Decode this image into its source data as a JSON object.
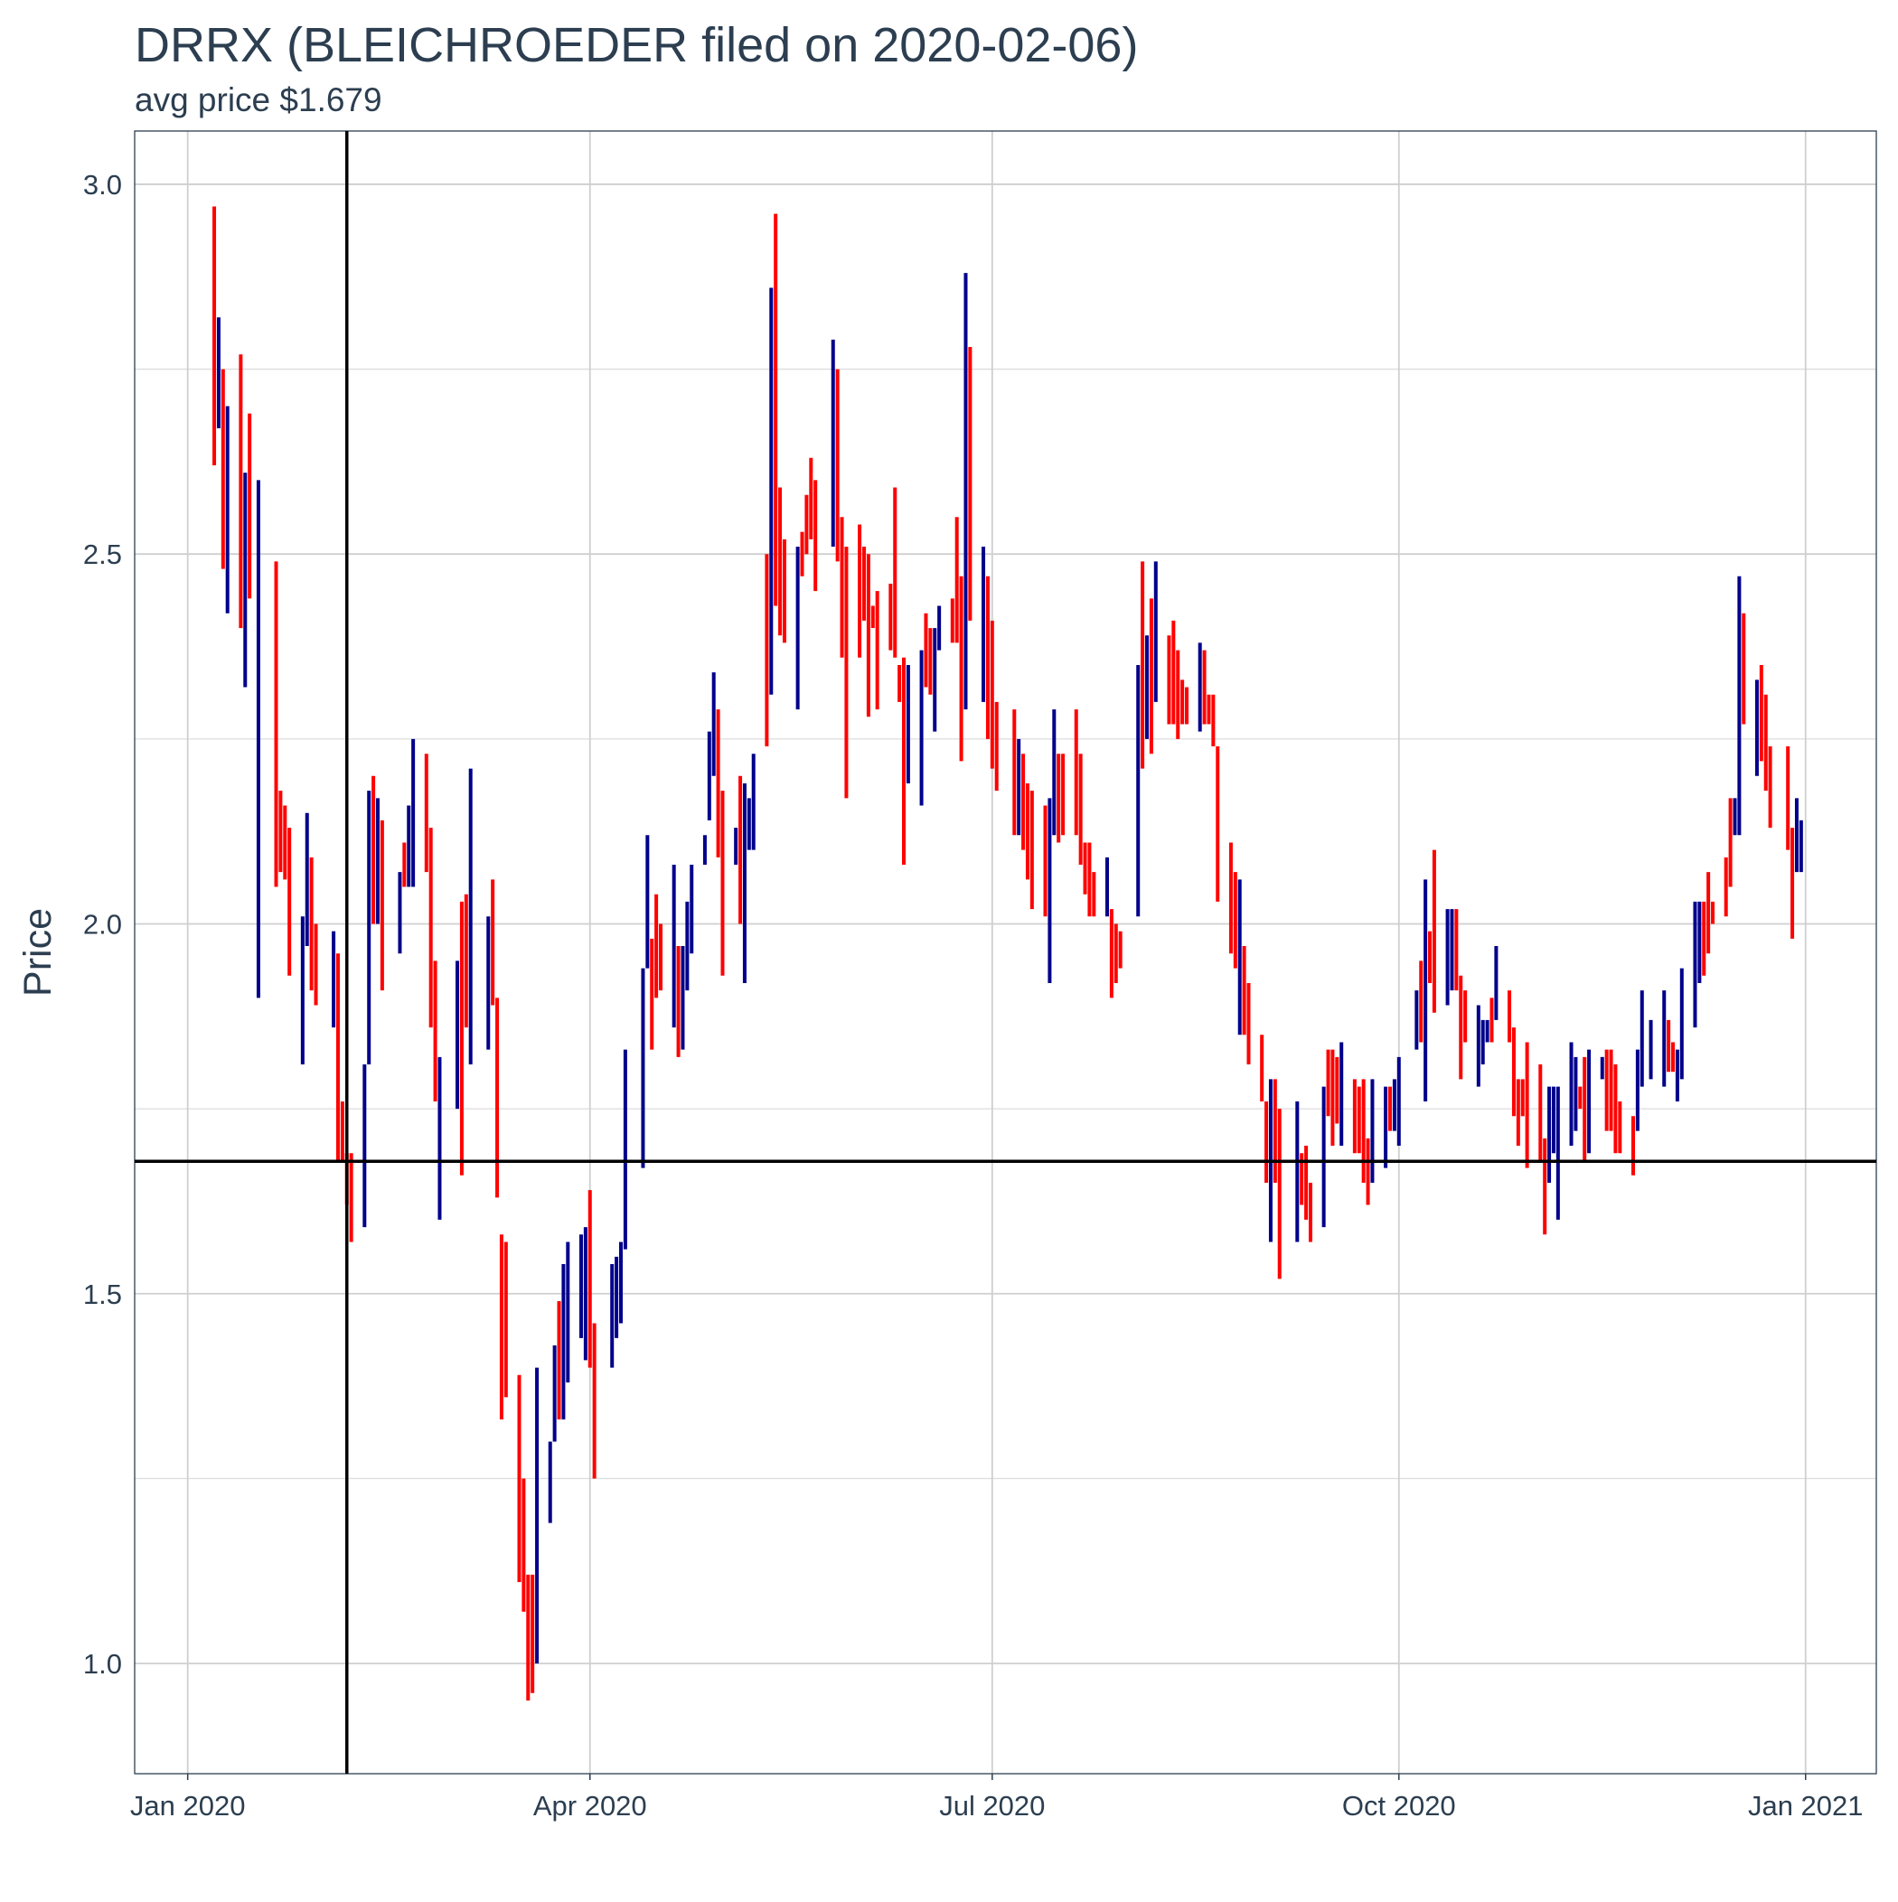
{
  "chart_data": {
    "type": "candlestick",
    "title": "DRRX (BLEICHROEDER filed on 2020-02-06)",
    "subtitle": "avg price $1.679",
    "y_label": "Price",
    "xlim": [
      "2019-12-20",
      "2021-01-17"
    ],
    "xticks": [
      {
        "value": "2020-01-01",
        "label": "Jan 2020"
      },
      {
        "value": "2020-04-01",
        "label": "Apr 2020"
      },
      {
        "value": "2020-07-01",
        "label": "Jul 2020"
      },
      {
        "value": "2020-10-01",
        "label": "Oct 2020"
      },
      {
        "value": "2021-01-01",
        "label": "Jan 2021"
      }
    ],
    "ylim": [
      0.851,
      3.072
    ],
    "yticks": [
      {
        "value": 1,
        "label": "1.0"
      },
      1.5,
      {
        "value": 2,
        "label": "2.0"
      },
      2.5,
      {
        "value": 3,
        "label": "3.0"
      }
    ],
    "yminor": [
      1.25,
      1.75,
      2.25,
      2.75
    ],
    "grid": true,
    "vline": "2020-02-06",
    "hline": 1.679,
    "series": [
      {
        "color": "#ff0000",
        "x": [
          "2020-01-07",
          "2020-01-09",
          "2020-01-13",
          "2020-01-15",
          "2020-01-21",
          "2020-01-22",
          "2020-01-23",
          "2020-01-24",
          "2020-01-29",
          "2020-01-30",
          "2020-02-04",
          "2020-02-05",
          "2020-02-06",
          "2020-02-07",
          "2020-02-12",
          "2020-02-14",
          "2020-02-19",
          "2020-02-24",
          "2020-02-25",
          "2020-02-26",
          "2020-03-03",
          "2020-03-04",
          "2020-03-10",
          "2020-03-11",
          "2020-03-12",
          "2020-03-13",
          "2020-03-16",
          "2020-03-17",
          "2020-03-18",
          "2020-03-19",
          "2020-03-25",
          "2020-04-01",
          "2020-04-02",
          "2020-04-15",
          "2020-04-16",
          "2020-04-17",
          "2020-04-21",
          "2020-04-30",
          "2020-05-01",
          "2020-05-05",
          "2020-05-11",
          "2020-05-13",
          "2020-05-14",
          "2020-05-15",
          "2020-05-19",
          "2020-05-20",
          "2020-05-21",
          "2020-05-22",
          "2020-05-27",
          "2020-05-28",
          "2020-05-29",
          "2020-06-01",
          "2020-06-02",
          "2020-06-03",
          "2020-06-04",
          "2020-06-05",
          "2020-06-08",
          "2020-06-09",
          "2020-06-10",
          "2020-06-11",
          "2020-06-16",
          "2020-06-17",
          "2020-06-22",
          "2020-06-23",
          "2020-06-24",
          "2020-06-26",
          "2020-06-30",
          "2020-07-01",
          "2020-07-02",
          "2020-07-06",
          "2020-07-08",
          "2020-07-09",
          "2020-07-10",
          "2020-07-13",
          "2020-07-16",
          "2020-07-17",
          "2020-07-20",
          "2020-07-21",
          "2020-07-22",
          "2020-07-23",
          "2020-07-24",
          "2020-07-28",
          "2020-07-29",
          "2020-07-30",
          "2020-08-04",
          "2020-08-06",
          "2020-08-10",
          "2020-08-11",
          "2020-08-12",
          "2020-08-13",
          "2020-08-14",
          "2020-08-18",
          "2020-08-19",
          "2020-08-20",
          "2020-08-21",
          "2020-08-24",
          "2020-08-25",
          "2020-08-27",
          "2020-08-28",
          "2020-08-31",
          "2020-09-01",
          "2020-09-03",
          "2020-09-04",
          "2020-09-09",
          "2020-09-10",
          "2020-09-11",
          "2020-09-15",
          "2020-09-16",
          "2020-09-17",
          "2020-09-21",
          "2020-09-22",
          "2020-09-23",
          "2020-09-24",
          "2020-09-29",
          "2020-10-06",
          "2020-10-08",
          "2020-10-09",
          "2020-10-14",
          "2020-10-15",
          "2020-10-16",
          "2020-10-22",
          "2020-10-26",
          "2020-10-27",
          "2020-10-28",
          "2020-10-29",
          "2020-10-30",
          "2020-11-02",
          "2020-11-03",
          "2020-11-11",
          "2020-11-12",
          "2020-11-17",
          "2020-11-18",
          "2020-11-19",
          "2020-11-20",
          "2020-11-23",
          "2020-12-01",
          "2020-12-02",
          "2020-12-09",
          "2020-12-10",
          "2020-12-11",
          "2020-12-14",
          "2020-12-15",
          "2020-12-18",
          "2020-12-22",
          "2020-12-23",
          "2020-12-24",
          "2020-12-28",
          "2020-12-29"
        ],
        "high": [
          2.97,
          2.75,
          2.77,
          2.69,
          2.49,
          2.18,
          2.16,
          2.13,
          2.09,
          2.0,
          1.96,
          1.76,
          1.69,
          1.69,
          2.2,
          2.14,
          2.11,
          2.23,
          2.13,
          1.95,
          2.03,
          2.04,
          2.06,
          1.9,
          1.58,
          1.57,
          1.39,
          1.25,
          1.12,
          1.12,
          1.49,
          1.64,
          1.46,
          1.98,
          2.04,
          2.0,
          1.97,
          2.29,
          2.18,
          2.2,
          2.5,
          2.96,
          2.59,
          2.52,
          2.53,
          2.58,
          2.63,
          2.6,
          2.75,
          2.55,
          2.51,
          2.54,
          2.51,
          2.5,
          2.43,
          2.45,
          2.46,
          2.59,
          2.35,
          2.36,
          2.42,
          2.4,
          2.44,
          2.55,
          2.47,
          2.78,
          2.47,
          2.41,
          2.3,
          2.29,
          2.23,
          2.19,
          2.18,
          2.16,
          2.23,
          2.23,
          2.29,
          2.23,
          2.11,
          2.11,
          2.07,
          2.02,
          2.0,
          1.99,
          2.49,
          2.44,
          2.39,
          2.41,
          2.37,
          2.33,
          2.32,
          2.37,
          2.31,
          2.31,
          2.24,
          2.11,
          2.07,
          1.97,
          1.92,
          1.85,
          1.76,
          1.79,
          1.75,
          1.69,
          1.7,
          1.65,
          1.83,
          1.83,
          1.82,
          1.79,
          1.78,
          1.79,
          1.71,
          1.78,
          1.95,
          1.99,
          2.1,
          2.02,
          1.93,
          1.91,
          1.9,
          1.91,
          1.86,
          1.79,
          1.79,
          1.84,
          1.81,
          1.71,
          1.78,
          1.82,
          1.83,
          1.83,
          1.81,
          1.76,
          1.74,
          1.87,
          1.84,
          2.03,
          2.07,
          2.03,
          2.09,
          2.17,
          2.42,
          2.35,
          2.31,
          2.24,
          2.24,
          2.13
        ],
        "low": [
          2.62,
          2.48,
          2.4,
          2.44,
          2.05,
          2.07,
          2.06,
          1.93,
          1.91,
          1.89,
          1.68,
          1.68,
          1.62,
          1.57,
          2.0,
          1.91,
          2.05,
          2.07,
          1.86,
          1.76,
          1.66,
          1.86,
          1.89,
          1.63,
          1.33,
          1.36,
          1.11,
          1.07,
          0.95,
          0.96,
          1.33,
          1.4,
          1.25,
          1.83,
          1.9,
          1.91,
          1.82,
          2.09,
          1.93,
          2.0,
          2.24,
          2.43,
          2.39,
          2.38,
          2.47,
          2.5,
          2.52,
          2.45,
          2.49,
          2.36,
          2.17,
          2.36,
          2.41,
          2.28,
          2.4,
          2.29,
          2.37,
          2.36,
          2.3,
          2.08,
          2.32,
          2.31,
          2.38,
          2.38,
          2.22,
          2.41,
          2.25,
          2.21,
          2.18,
          2.12,
          2.1,
          2.06,
          2.02,
          2.01,
          2.11,
          2.12,
          2.12,
          2.08,
          2.04,
          2.01,
          2.01,
          1.9,
          1.92,
          1.94,
          2.21,
          2.23,
          2.27,
          2.27,
          2.25,
          2.27,
          2.27,
          2.27,
          2.27,
          2.24,
          2.03,
          1.96,
          1.94,
          1.85,
          1.81,
          1.76,
          1.65,
          1.65,
          1.52,
          1.62,
          1.6,
          1.57,
          1.74,
          1.7,
          1.73,
          1.69,
          1.69,
          1.65,
          1.62,
          1.72,
          1.84,
          1.92,
          1.88,
          1.91,
          1.79,
          1.84,
          1.84,
          1.84,
          1.74,
          1.7,
          1.74,
          1.67,
          1.68,
          1.58,
          1.75,
          1.68,
          1.72,
          1.72,
          1.69,
          1.69,
          1.66,
          1.8,
          1.8,
          1.93,
          1.96,
          2.0,
          2.01,
          2.05,
          2.27,
          2.22,
          2.18,
          2.13,
          2.1,
          1.98
        ]
      },
      {
        "color": "#00008b",
        "x": [
          "2020-01-08",
          "2020-01-10",
          "2020-01-14",
          "2020-01-17",
          "2020-01-27",
          "2020-01-28",
          "2020-02-03",
          "2020-02-10",
          "2020-02-11",
          "2020-02-13",
          "2020-02-18",
          "2020-02-20",
          "2020-02-21",
          "2020-02-27",
          "2020-03-02",
          "2020-03-05",
          "2020-03-09",
          "2020-03-20",
          "2020-03-23",
          "2020-03-24",
          "2020-03-26",
          "2020-03-27",
          "2020-03-30",
          "2020-03-31",
          "2020-04-06",
          "2020-04-07",
          "2020-04-08",
          "2020-04-09",
          "2020-04-13",
          "2020-04-14",
          "2020-04-20",
          "2020-04-22",
          "2020-04-23",
          "2020-04-24",
          "2020-04-27",
          "2020-04-28",
          "2020-04-29",
          "2020-05-04",
          "2020-05-06",
          "2020-05-07",
          "2020-05-08",
          "2020-05-12",
          "2020-05-18",
          "2020-05-26",
          "2020-06-12",
          "2020-06-15",
          "2020-06-18",
          "2020-06-19",
          "2020-06-25",
          "2020-06-29",
          "2020-07-07",
          "2020-07-14",
          "2020-07-15",
          "2020-07-27",
          "2020-08-03",
          "2020-08-05",
          "2020-08-07",
          "2020-08-17",
          "2020-08-26",
          "2020-09-02",
          "2020-09-08",
          "2020-09-14",
          "2020-09-18",
          "2020-09-25",
          "2020-09-28",
          "2020-09-30",
          "2020-10-01",
          "2020-10-05",
          "2020-10-07",
          "2020-10-12",
          "2020-10-13",
          "2020-10-19",
          "2020-10-20",
          "2020-10-21",
          "2020-10-23",
          "2020-11-04",
          "2020-11-05",
          "2020-11-06",
          "2020-11-09",
          "2020-11-10",
          "2020-11-13",
          "2020-11-16",
          "2020-11-24",
          "2020-11-25",
          "2020-11-27",
          "2020-11-30",
          "2020-12-03",
          "2020-12-04",
          "2020-12-07",
          "2020-12-08",
          "2020-12-16",
          "2020-12-17",
          "2020-12-21",
          "2020-12-30",
          "2020-12-31"
        ],
        "high": [
          2.82,
          2.7,
          2.61,
          2.6,
          2.01,
          2.15,
          1.99,
          1.81,
          2.18,
          2.17,
          2.07,
          2.16,
          2.25,
          1.82,
          1.95,
          2.21,
          2.01,
          1.4,
          1.3,
          1.43,
          1.54,
          1.57,
          1.58,
          1.59,
          1.54,
          1.55,
          1.57,
          1.83,
          1.94,
          2.12,
          2.08,
          1.97,
          2.03,
          2.08,
          2.12,
          2.26,
          2.34,
          2.13,
          2.19,
          2.17,
          2.23,
          2.86,
          2.51,
          2.79,
          2.35,
          2.37,
          2.4,
          2.43,
          2.88,
          2.51,
          2.25,
          2.17,
          2.29,
          2.09,
          2.35,
          2.39,
          2.49,
          2.38,
          2.06,
          1.79,
          1.76,
          1.78,
          1.84,
          1.79,
          1.78,
          1.79,
          1.82,
          1.91,
          2.06,
          2.02,
          2.02,
          1.89,
          1.87,
          1.87,
          1.97,
          1.78,
          1.78,
          1.78,
          1.84,
          1.82,
          1.83,
          1.82,
          1.83,
          1.91,
          1.87,
          1.91,
          1.83,
          1.94,
          2.03,
          2.03,
          2.17,
          2.47,
          2.33,
          2.17,
          2.14
        ],
        "low": [
          2.67,
          2.42,
          2.32,
          1.9,
          1.81,
          1.97,
          1.86,
          1.59,
          1.81,
          2.0,
          1.96,
          2.05,
          2.05,
          1.6,
          1.75,
          1.81,
          1.83,
          1.0,
          1.19,
          1.3,
          1.33,
          1.38,
          1.44,
          1.41,
          1.4,
          1.44,
          1.46,
          1.56,
          1.67,
          1.94,
          1.86,
          1.83,
          1.91,
          1.96,
          2.08,
          2.14,
          2.2,
          2.08,
          1.92,
          2.1,
          2.1,
          2.31,
          2.29,
          2.51,
          2.19,
          2.16,
          2.26,
          2.37,
          2.29,
          2.3,
          2.12,
          1.92,
          2.12,
          2.01,
          2.01,
          2.25,
          2.3,
          2.26,
          1.85,
          1.57,
          1.57,
          1.59,
          1.7,
          1.65,
          1.67,
          1.72,
          1.7,
          1.83,
          1.76,
          1.89,
          1.91,
          1.78,
          1.81,
          1.84,
          1.87,
          1.65,
          1.69,
          1.6,
          1.7,
          1.72,
          1.69,
          1.79,
          1.72,
          1.78,
          1.79,
          1.78,
          1.76,
          1.79,
          1.86,
          1.92,
          2.12,
          2.12,
          2.2,
          2.07,
          2.07
        ]
      }
    ]
  }
}
